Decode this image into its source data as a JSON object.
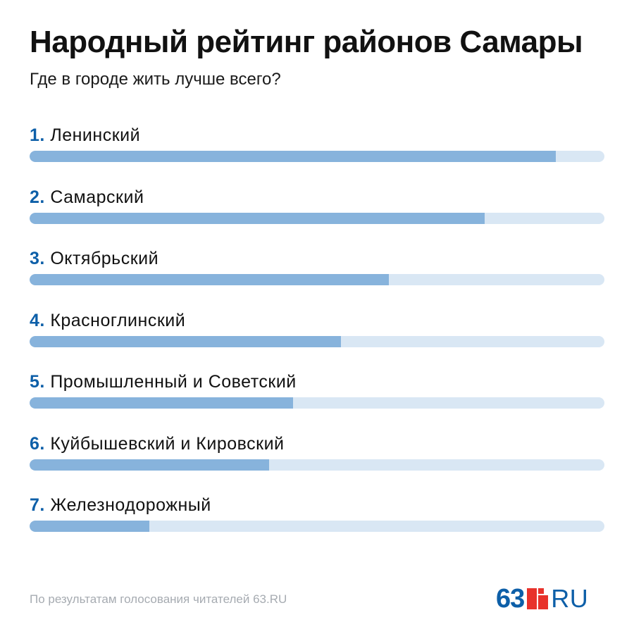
{
  "header": {
    "title": "Народный рейтинг районов Самары",
    "subtitle": "Где в городе жить лучше всего?"
  },
  "colors": {
    "rank": "#0d5fa8",
    "fill": "#87b3dc",
    "track": "#d9e7f4",
    "logo_blue": "#0d5fa8",
    "logo_red": "#e8322b",
    "footer": "#a6abb1"
  },
  "chart_data": {
    "type": "bar",
    "orientation": "horizontal",
    "title": "Народный рейтинг районов Самары",
    "subtitle": "Где в городе жить лучше всего?",
    "xlim": [
      0,
      1
    ],
    "grid": false,
    "categories": [
      "Ленинский",
      "Самарский",
      "Октябрьский",
      "Красноглинский",
      "Промышленный и Советский",
      "Куйбышевский и Кировский",
      "Железнодорожный"
    ],
    "rank_labels": [
      "1.",
      "2.",
      "3.",
      "4.",
      "5.",
      "6.",
      "7."
    ],
    "values": [
      0.916,
      0.792,
      0.625,
      0.542,
      0.458,
      0.417,
      0.208
    ]
  },
  "footer": {
    "source": "По результатам голосования читателей 63.RU"
  },
  "logo": {
    "number": "63",
    "domain": "RU",
    "icon": "red-blocks-logo-mark"
  }
}
